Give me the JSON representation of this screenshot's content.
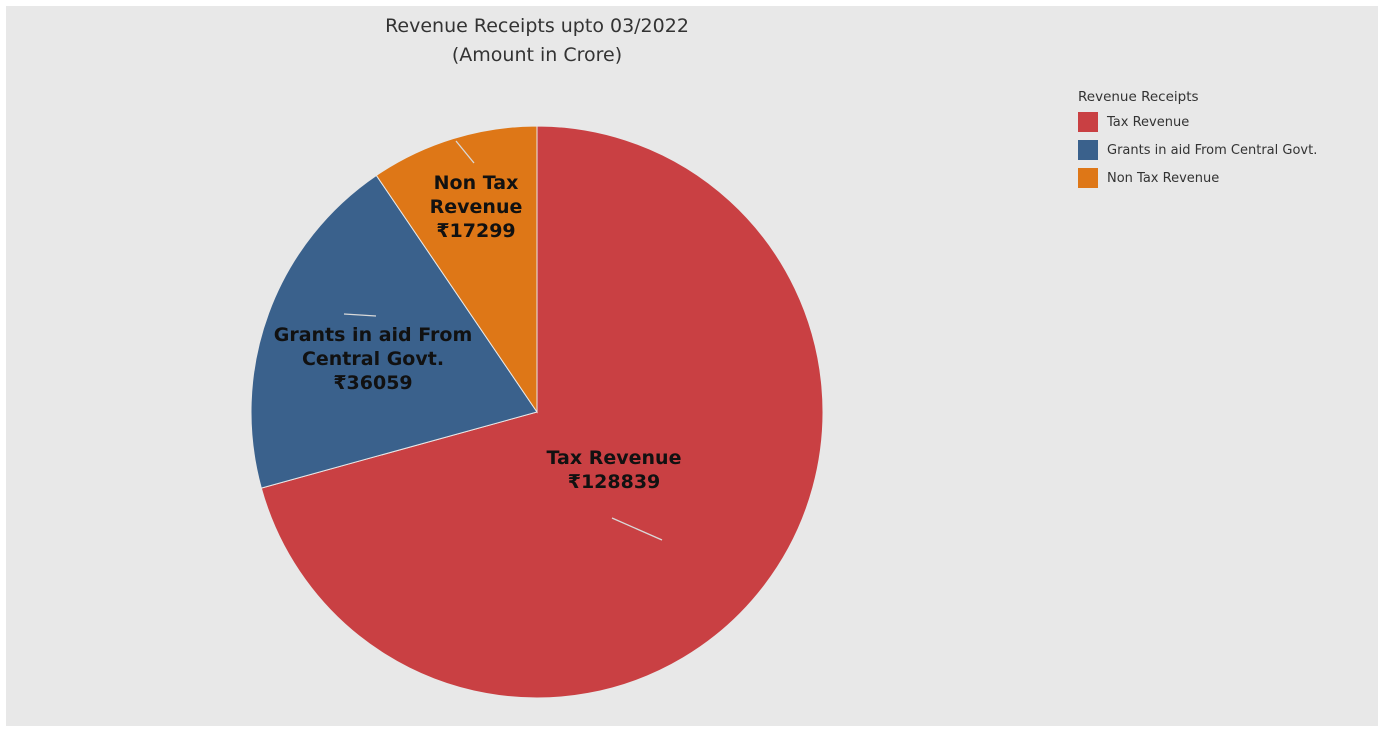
{
  "chart_data": {
    "type": "pie",
    "title_lines": [
      "Revenue Receipts upto 03/2022",
      "(Amount in Crore)"
    ],
    "legend_title": "Revenue Receipts",
    "legend_position": "top-right",
    "currency_symbol": "₹",
    "slices": [
      {
        "name": "Tax Revenue",
        "value": 128839,
        "label_lines": [
          "Tax Revenue",
          "₹128839"
        ],
        "color": "#c94043"
      },
      {
        "name": "Grants in aid From Central Govt.",
        "value": 36059,
        "label_lines": [
          "Grants in aid From",
          "Central Govt.",
          "₹36059"
        ],
        "color": "#3a618c"
      },
      {
        "name": "Non Tax Revenue",
        "value": 17299,
        "label_lines": [
          "Non Tax",
          "Revenue",
          "₹17299"
        ],
        "color": "#de7717"
      }
    ]
  }
}
